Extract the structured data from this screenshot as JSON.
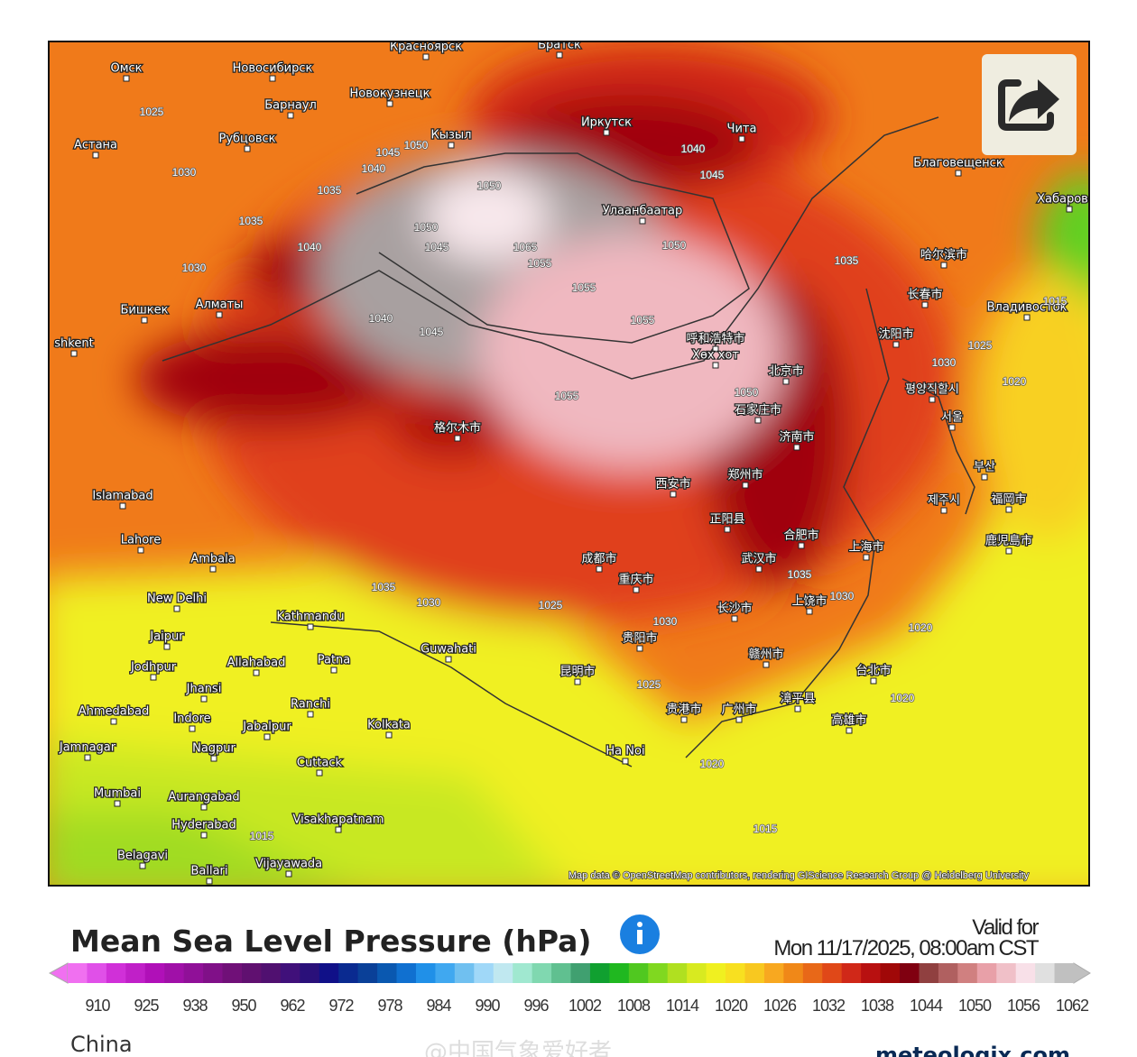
{
  "map": {
    "cities": [
      "Омск",
      "Новосибирск",
      "Барнаул",
      "Новокузнецк",
      "Красноярск",
      "Братск",
      "Иркутск",
      "Чита",
      "Кызыл",
      "Астана",
      "Рубцовск",
      "Улаанбаатар",
      "Благовещенск",
      "Хабаровск",
      "哈尔滨市",
      "长春市",
      "Владивосток",
      "沈阳市",
      "평양직할시",
      "서울",
      "부산",
      "제주시",
      "福岡市",
      "鹿児島市",
      "上海市",
      "北京市",
      "呼和浩特市",
      "Хөх хот",
      "石家庄市",
      "济南市",
      "郑州市",
      "西安市",
      "正阳县",
      "合肥市",
      "武汉市",
      "成都市",
      "重庆市",
      "长沙市",
      "上饶市",
      "贵阳市",
      "昆明市",
      "赣州市",
      "台北市",
      "高雄市",
      "漳平县",
      "贵港市",
      "广州市",
      "Ha Noi",
      "Guwahati",
      "Kathmandu",
      "New Delhi",
      "Lahore",
      "Islamabad",
      "Бишкек",
      "Алматы",
      "shkent",
      "格尔木市",
      "Ambala",
      "Jaipur",
      "Jodhpur",
      "Allahabad",
      "Patna",
      "Jhansi",
      "Ranchi",
      "Ahmedabad",
      "Indore",
      "Jabalpur",
      "Kolkata",
      "Jamnagar",
      "Nagpur",
      "Cuttack",
      "Mumbai",
      "Aurangabad",
      "Hyderabad",
      "Visakhapatnam",
      "Belagavi",
      "Vijayawada",
      "Ballari"
    ],
    "isobar_labels": [
      1025,
      1030,
      1035,
      1040,
      1045,
      1050,
      1050,
      1045,
      1040,
      1035,
      1030,
      1050,
      1055,
      1065,
      1055,
      1055,
      1050,
      1045,
      1040,
      1035,
      1030,
      1025,
      1020,
      1015,
      1015,
      1020,
      1020,
      1025,
      1030,
      1035,
      1030,
      1020,
      1015,
      1025,
      1030,
      1035,
      1040,
      1045,
      1050,
      1055
    ],
    "attribution": "Map data © OpenStreetMap contributors, rendering GIScience Research Group @ Heidelberg University"
  },
  "header": {
    "title": "Mean Sea Level Pressure (hPa)",
    "valid_label": "Valid for",
    "valid_time": "Mon 11/17/2025, 08:00am CST"
  },
  "colorbar": {
    "colors": [
      "#f070f0",
      "#e050e8",
      "#d030d8",
      "#c020c8",
      "#b010b8",
      "#a010a8",
      "#901098",
      "#801088",
      "#701078",
      "#601070",
      "#501070",
      "#40107a",
      "#2a107a",
      "#101088",
      "#0a2a90",
      "#0a4098",
      "#0a58b0",
      "#1070d0",
      "#2090e8",
      "#40a8f0",
      "#70c0f0",
      "#a0d8f8",
      "#c0e8f0",
      "#a0e8d0",
      "#80d8b0",
      "#60c090",
      "#40a070",
      "#10a030",
      "#20b820",
      "#50c820",
      "#80d820",
      "#b0e020",
      "#d8ea20",
      "#f0f020",
      "#f8e020",
      "#f8c820",
      "#f8a820",
      "#f08818",
      "#e86818",
      "#e04818",
      "#d02818",
      "#b81010",
      "#a00808",
      "#800010",
      "#904040",
      "#b06060",
      "#d08080",
      "#e8a0a8",
      "#f0c0c8",
      "#f8e0e8",
      "#e0e0e0",
      "#c0c0c0"
    ],
    "ticks": [
      910,
      925,
      938,
      950,
      962,
      972,
      978,
      984,
      990,
      996,
      1002,
      1008,
      1014,
      1020,
      1026,
      1032,
      1038,
      1044,
      1050,
      1056,
      1062
    ]
  },
  "footer": {
    "region": "China",
    "watermark": "@中国气象爱好者",
    "brand": "meteologix.com"
  }
}
